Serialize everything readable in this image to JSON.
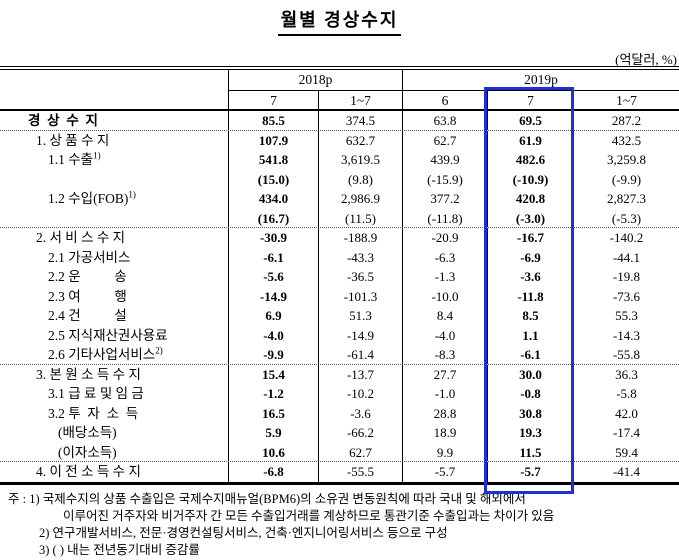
{
  "page": {
    "title": "월별 경상수지",
    "unit_label": "(억달러, %)"
  },
  "table": {
    "header": {
      "groups": [
        {
          "label": "2018p"
        },
        {
          "label": "2019p"
        }
      ],
      "columns": [
        "7",
        "1~7",
        "6",
        "7",
        "1~7"
      ]
    },
    "highlight": {
      "group": "2019p",
      "column": "7",
      "color": "#2030cf"
    },
    "bold_columns": [
      0,
      3
    ],
    "rows": [
      {
        "label": "경  상  수  지",
        "indent": 0,
        "label_bold": true,
        "values": [
          "85.5",
          "374.5",
          "63.8",
          "69.5",
          "287.2"
        ],
        "sep_after": true
      },
      {
        "label": "1. 상 품 수 지",
        "indent": 1,
        "values": [
          "107.9",
          "632.7",
          "62.7",
          "61.9",
          "432.5"
        ]
      },
      {
        "label": "1.1 수출",
        "sup": "1)",
        "indent": 2,
        "values": [
          "541.8",
          "3,619.5",
          "439.9",
          "482.6",
          "3,259.8"
        ]
      },
      {
        "label": "",
        "indent": 2,
        "values": [
          "(15.0)",
          "(9.8)",
          "(-15.9)",
          "(-10.9)",
          "(-9.9)"
        ]
      },
      {
        "label": "1.2 수입(FOB)",
        "sup": "1)",
        "indent": 2,
        "values": [
          "434.0",
          "2,986.9",
          "377.2",
          "420.8",
          "2,827.3"
        ]
      },
      {
        "label": "",
        "indent": 2,
        "values": [
          "(16.7)",
          "(11.5)",
          "(-11.8)",
          "(-3.0)",
          "(-5.3)"
        ],
        "sep_after": true
      },
      {
        "label": "2. 서 비 스 수 지",
        "indent": 1,
        "values": [
          "-30.9",
          "-188.9",
          "-20.9",
          "-16.7",
          "-140.2"
        ]
      },
      {
        "label": "2.1 가공서비스",
        "indent": 2,
        "values": [
          "-6.1",
          "-43.3",
          "-6.3",
          "-6.9",
          "-44.1"
        ]
      },
      {
        "label": "2.2 운          송",
        "indent": 2,
        "values": [
          "-5.6",
          "-36.5",
          "-1.3",
          "-3.6",
          "-19.8"
        ]
      },
      {
        "label": "2.3 여          행",
        "indent": 2,
        "values": [
          "-14.9",
          "-101.3",
          "-10.0",
          "-11.8",
          "-73.6"
        ]
      },
      {
        "label": "2.4 건          설",
        "indent": 2,
        "values": [
          "6.9",
          "51.3",
          "8.4",
          "8.5",
          "55.3"
        ]
      },
      {
        "label": "2.5 지식재산권사용료",
        "indent": 2,
        "values": [
          "-4.0",
          "-14.9",
          "-4.0",
          "1.1",
          "-14.3"
        ]
      },
      {
        "label": "2.6 기타사업서비스",
        "sup": "2)",
        "indent": 2,
        "values": [
          "-9.9",
          "-61.4",
          "-8.3",
          "-6.1",
          "-55.8"
        ],
        "sep_after": true
      },
      {
        "label": "3. 본 원 소 득 수 지",
        "indent": 1,
        "values": [
          "15.4",
          "-13.7",
          "27.7",
          "30.0",
          "36.3"
        ]
      },
      {
        "label": "3.1 급 료 및 임 금",
        "indent": 2,
        "values": [
          "-1.2",
          "-10.2",
          "-1.0",
          "-0.8",
          "-5.8"
        ]
      },
      {
        "label": "3.2 투  자  소  득",
        "indent": 2,
        "values": [
          "16.5",
          "-3.6",
          "28.8",
          "30.8",
          "42.0"
        ]
      },
      {
        "label": "(배당소득)",
        "indent": 3,
        "values": [
          "5.9",
          "-66.2",
          "18.9",
          "19.3",
          "-17.4"
        ]
      },
      {
        "label": "(이자소득)",
        "indent": 3,
        "values": [
          "10.6",
          "62.7",
          "9.9",
          "11.5",
          "59.4"
        ],
        "sep_after": true
      },
      {
        "label": "4. 이 전 소 득 수 지",
        "indent": 1,
        "values": [
          "-6.8",
          "-55.5",
          "-5.7",
          "-5.7",
          "-41.4"
        ]
      }
    ]
  },
  "footnotes": {
    "lines": [
      "주 : 1) 국제수지의 상품 수출입은 국제수지매뉴얼(BPM6)의 소유권 변동원칙에 따라 국내 및 해외에서",
      "이루어진 거주자와 비거주자 간 모든 수출입거래를 계상하므로 통관기준 수출입과는 차이가 있음",
      "2) 연구개발서비스, 전문·경영컨설팅서비스, 건축·엔지니어링서비스 등으로 구성",
      "3) ( ) 내는 전년동기대비 증감률"
    ]
  }
}
